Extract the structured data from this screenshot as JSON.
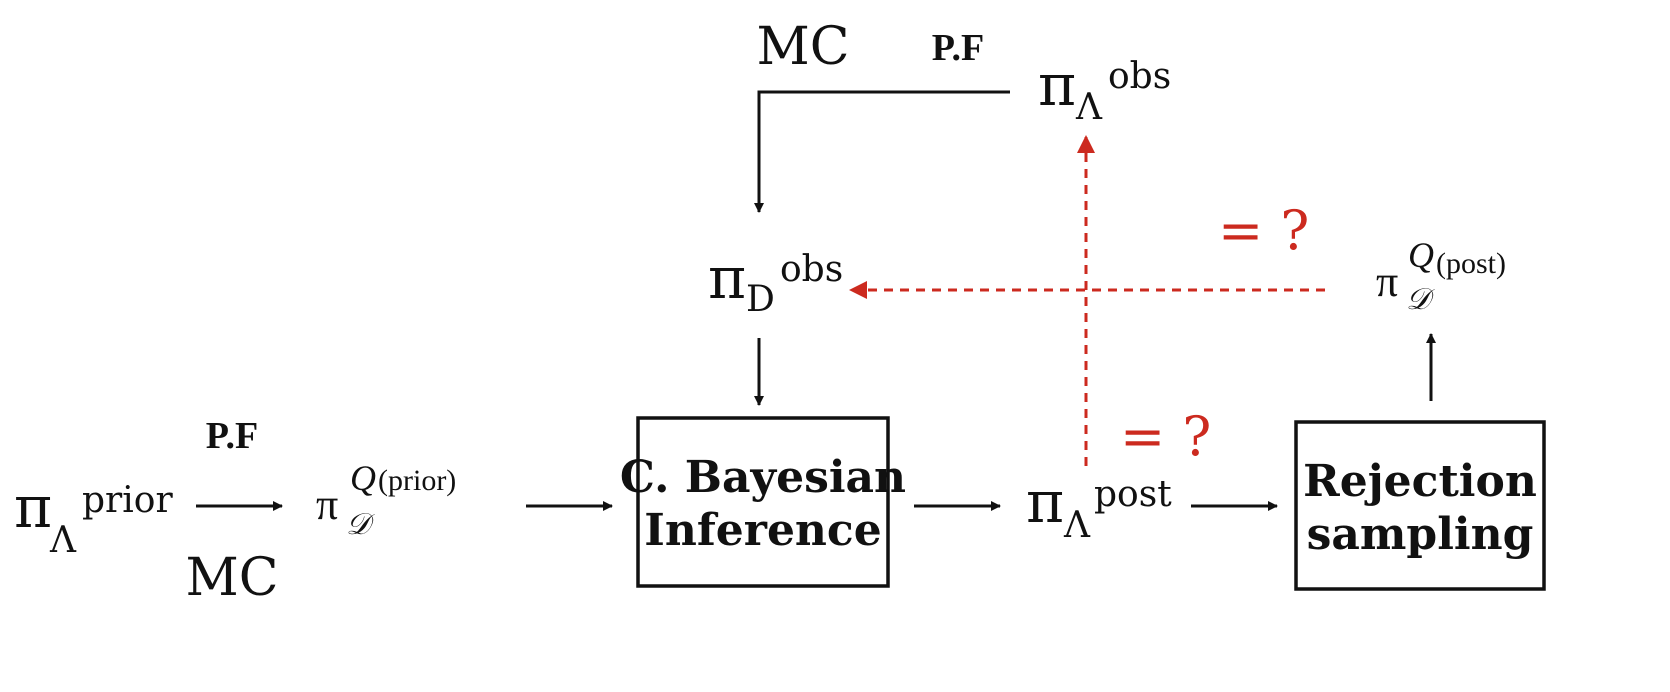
{
  "colors": {
    "ink": "#111111",
    "highlight": "#cc2a1f"
  },
  "nodes": {
    "pi_prior": {
      "symbol": "π",
      "sub": "Λ",
      "sup": "prior"
    },
    "pi_q_prior": {
      "symbol": "π",
      "sub": "𝒟",
      "sup_italic": "Q",
      "sup": "(prior)"
    },
    "pi_d_obs": {
      "symbol": "π",
      "sub": "D",
      "sup": "obs"
    },
    "pi_lambda_obs": {
      "symbol": "π",
      "sub": "Λ",
      "sup": "obs"
    },
    "pi_post": {
      "symbol": "π",
      "sub": "Λ",
      "sup": "post"
    },
    "pi_q_post": {
      "symbol": "π",
      "sub": "𝒟",
      "sup_italic": "Q",
      "sup": "(post)"
    }
  },
  "boxes": {
    "bayesian": {
      "line1": "C. Bayesian",
      "line2": "Inference"
    },
    "rejection": {
      "line1": "Rejection",
      "line2": "sampling"
    }
  },
  "labels": {
    "pf_bottom": "P.F",
    "mc_bottom": "MC",
    "mc_top": "MC",
    "pf_top": "P.F"
  },
  "comparisons": {
    "upper": "= ?",
    "lower": "= ?"
  }
}
